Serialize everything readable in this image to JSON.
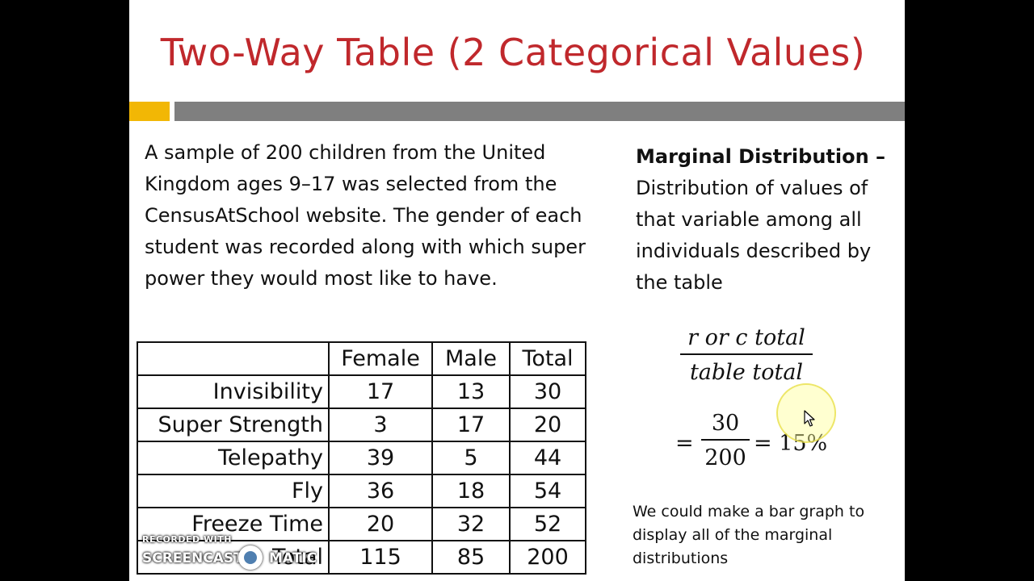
{
  "slide": {
    "title": "Two-Way Table (2 Categorical Values)",
    "intro_text": "A sample of 200 children from the United Kingdom ages 9–17 was selected from the CensusAtSchool website.  The gender of each student was recorded along with which super power they would most like to have.",
    "colors": {
      "title": "#c0282c",
      "accent_gold": "#f2b705",
      "accent_gray": "#7f7f7f"
    }
  },
  "table": {
    "headers": [
      "Female",
      "Male",
      "Total"
    ],
    "rows": [
      {
        "label": "Invisibility",
        "female": "17",
        "male": "13",
        "total": "30"
      },
      {
        "label": "Super Strength",
        "female": "3",
        "male": "17",
        "total": "20"
      },
      {
        "label": "Telepathy",
        "female": "39",
        "male": "5",
        "total": "44"
      },
      {
        "label": "Fly",
        "female": "36",
        "male": "18",
        "total": "54"
      },
      {
        "label": "Freeze Time",
        "female": "20",
        "male": "32",
        "total": "52"
      },
      {
        "label": "Total",
        "female": "115",
        "male": "85",
        "total": "200"
      }
    ]
  },
  "marginal": {
    "heading": "Marginal Distribution –",
    "definition": "Distribution of values of that variable among all individuals described by the table",
    "formula_numerator": "r or c total",
    "formula_denominator": "table total",
    "example_numerator": "30",
    "example_denominator": "200",
    "example_equals": "=",
    "example_result": "= 15%",
    "note": "We could make a bar graph to display all of the marginal distributions"
  },
  "watermark": {
    "line1": "RECORDED WITH",
    "brand_a": "SCREENCAST",
    "brand_b": "MATIC"
  }
}
